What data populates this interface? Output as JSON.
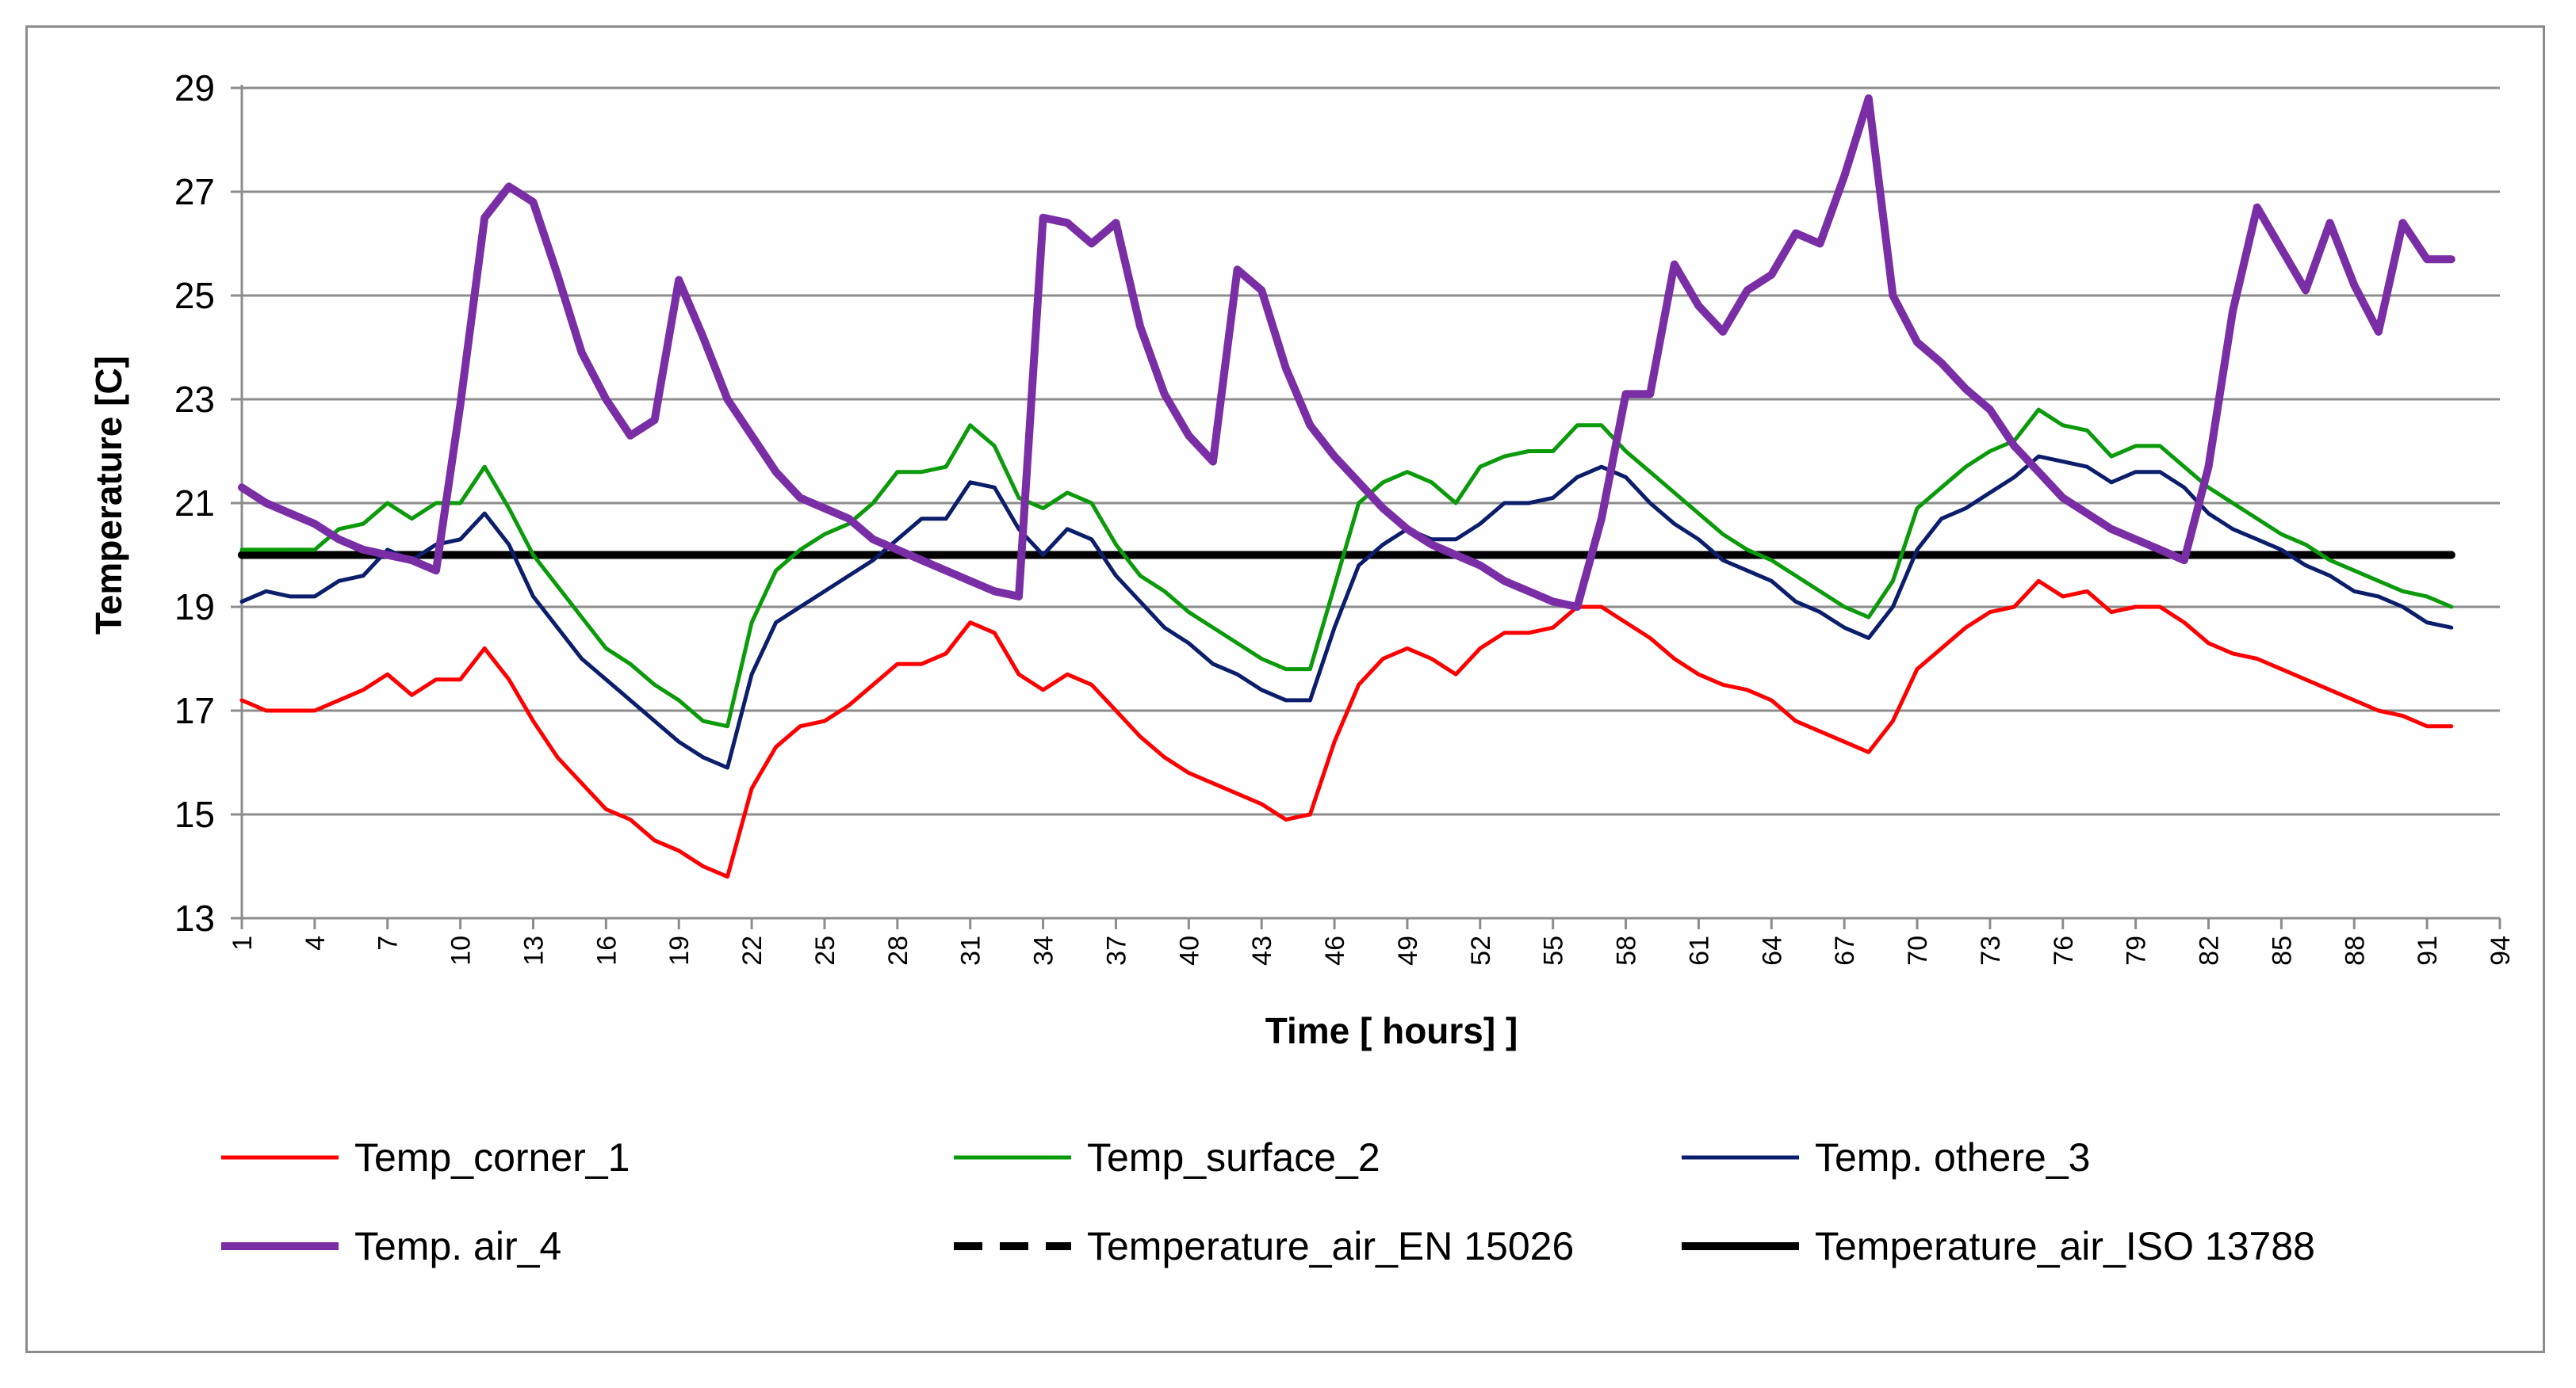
{
  "chart_data": {
    "type": "line",
    "title": "",
    "xlabel": "Time [ hours] ]",
    "ylabel": "Temperature [C]",
    "xlim": [
      1,
      94
    ],
    "ylim": [
      13,
      29
    ],
    "y_ticks": [
      13,
      15,
      17,
      19,
      21,
      23,
      25,
      27,
      29
    ],
    "x_ticks": [
      1,
      4,
      7,
      10,
      13,
      16,
      19,
      22,
      25,
      28,
      31,
      34,
      37,
      40,
      43,
      46,
      49,
      52,
      55,
      58,
      61,
      64,
      67,
      70,
      73,
      76,
      79,
      82,
      85,
      88,
      91,
      94
    ],
    "grid": true,
    "legend_position": "bottom",
    "x": [
      1,
      2,
      3,
      4,
      5,
      6,
      7,
      8,
      9,
      10,
      11,
      12,
      13,
      14,
      15,
      16,
      17,
      18,
      19,
      20,
      21,
      22,
      23,
      24,
      25,
      26,
      27,
      28,
      29,
      30,
      31,
      32,
      33,
      34,
      35,
      36,
      37,
      38,
      39,
      40,
      41,
      42,
      43,
      44,
      45,
      46,
      47,
      48,
      49,
      50,
      51,
      52,
      53,
      54,
      55,
      56,
      57,
      58,
      59,
      60,
      61,
      62,
      63,
      64,
      65,
      66,
      67,
      68,
      69,
      70,
      71,
      72,
      73,
      74,
      75,
      76,
      77,
      78,
      79,
      80,
      81,
      82,
      83,
      84,
      85,
      86,
      87,
      88,
      89,
      90,
      91,
      92
    ],
    "series": [
      {
        "name": "Temp_corner_1",
        "color": "#ff0000",
        "line_style": "solid",
        "values": [
          17.2,
          17.0,
          17.0,
          17.0,
          17.2,
          17.4,
          17.7,
          17.3,
          17.6,
          17.6,
          18.2,
          17.6,
          16.8,
          16.1,
          15.6,
          15.1,
          14.9,
          14.5,
          14.3,
          14.0,
          13.8,
          15.5,
          16.3,
          16.7,
          16.8,
          17.1,
          17.5,
          17.9,
          17.9,
          18.1,
          18.7,
          18.5,
          17.7,
          17.4,
          17.7,
          17.5,
          17.0,
          16.5,
          16.1,
          15.8,
          15.6,
          15.4,
          15.2,
          14.9,
          15.0,
          16.4,
          17.5,
          18.0,
          18.2,
          18.0,
          17.7,
          18.2,
          18.5,
          18.5,
          18.6,
          19.0,
          19.0,
          18.7,
          18.4,
          18.0,
          17.7,
          17.5,
          17.4,
          17.2,
          16.8,
          16.6,
          16.4,
          16.2,
          16.8,
          17.8,
          18.2,
          18.6,
          18.9,
          19.0,
          19.5,
          19.2,
          19.3,
          18.9,
          19.0,
          19.0,
          18.7,
          18.3,
          18.1,
          18.0,
          17.8,
          17.6,
          17.4,
          17.2,
          17.0,
          16.9,
          16.7,
          16.7
        ]
      },
      {
        "name": "Temp_surface_2",
        "color": "#0a9a0a",
        "line_style": "solid",
        "values": [
          20.1,
          20.1,
          20.1,
          20.1,
          20.5,
          20.6,
          21.0,
          20.7,
          21.0,
          21.0,
          21.7,
          20.9,
          20.0,
          19.4,
          18.8,
          18.2,
          17.9,
          17.5,
          17.2,
          16.8,
          16.7,
          18.7,
          19.7,
          20.1,
          20.4,
          20.6,
          21.0,
          21.6,
          21.6,
          21.7,
          22.5,
          22.1,
          21.1,
          20.9,
          21.2,
          21.0,
          20.2,
          19.6,
          19.3,
          18.9,
          18.6,
          18.3,
          18.0,
          17.8,
          17.8,
          19.4,
          21.0,
          21.4,
          21.6,
          21.4,
          21.0,
          21.7,
          21.9,
          22.0,
          22.0,
          22.5,
          22.5,
          22.0,
          21.6,
          21.2,
          20.8,
          20.4,
          20.1,
          19.9,
          19.6,
          19.3,
          19.0,
          18.8,
          19.5,
          20.9,
          21.3,
          21.7,
          22.0,
          22.2,
          22.8,
          22.5,
          22.4,
          21.9,
          22.1,
          22.1,
          21.7,
          21.3,
          21.0,
          20.7,
          20.4,
          20.2,
          19.9,
          19.7,
          19.5,
          19.3,
          19.2,
          19.0
        ]
      },
      {
        "name": "Temp. othere_3",
        "color": "#0b1d6b",
        "line_style": "solid",
        "values": [
          19.1,
          19.3,
          19.2,
          19.2,
          19.5,
          19.6,
          20.1,
          19.9,
          20.2,
          20.3,
          20.8,
          20.2,
          19.2,
          18.6,
          18.0,
          17.6,
          17.2,
          16.8,
          16.4,
          16.1,
          15.9,
          17.7,
          18.7,
          19.0,
          19.3,
          19.6,
          19.9,
          20.3,
          20.7,
          20.7,
          21.4,
          21.3,
          20.5,
          20.0,
          20.5,
          20.3,
          19.6,
          19.1,
          18.6,
          18.3,
          17.9,
          17.7,
          17.4,
          17.2,
          17.2,
          18.6,
          19.8,
          20.2,
          20.5,
          20.3,
          20.3,
          20.6,
          21.0,
          21.0,
          21.1,
          21.5,
          21.7,
          21.5,
          21.0,
          20.6,
          20.3,
          19.9,
          19.7,
          19.5,
          19.1,
          18.9,
          18.6,
          18.4,
          19.0,
          20.1,
          20.7,
          20.9,
          21.2,
          21.5,
          21.9,
          21.8,
          21.7,
          21.4,
          21.6,
          21.6,
          21.3,
          20.8,
          20.5,
          20.3,
          20.1,
          19.8,
          19.6,
          19.3,
          19.2,
          19.0,
          18.7,
          18.6
        ]
      },
      {
        "name": "Temp. air_4",
        "color": "#7a2ea6",
        "line_style": "solid",
        "values": [
          21.3,
          21.0,
          20.8,
          20.6,
          20.3,
          20.1,
          20.0,
          19.9,
          19.7,
          22.9,
          26.5,
          27.1,
          26.8,
          25.4,
          23.9,
          23.0,
          22.3,
          22.6,
          25.3,
          24.2,
          23.0,
          22.3,
          21.6,
          21.1,
          20.9,
          20.7,
          20.3,
          20.1,
          19.9,
          19.7,
          19.5,
          19.3,
          19.2,
          26.5,
          26.4,
          26.0,
          26.4,
          24.4,
          23.1,
          22.3,
          21.8,
          25.5,
          25.1,
          23.6,
          22.5,
          21.9,
          21.4,
          20.9,
          20.5,
          20.2,
          20.0,
          19.8,
          19.5,
          19.3,
          19.1,
          19.0,
          20.7,
          23.1,
          23.1,
          25.6,
          24.8,
          24.3,
          25.1,
          25.4,
          26.2,
          26.0,
          27.3,
          28.8,
          25.0,
          24.1,
          23.7,
          23.2,
          22.8,
          22.1,
          21.6,
          21.1,
          20.8,
          20.5,
          20.3,
          20.1,
          19.9,
          21.7,
          24.7,
          26.7,
          25.9,
          25.1,
          26.4,
          25.2,
          24.3,
          26.4,
          25.7,
          25.7
        ]
      },
      {
        "name": "Temperature_air_EN 15026",
        "color": "#000000",
        "line_style": "dashed",
        "values": [
          20,
          20,
          20,
          20,
          20,
          20,
          20,
          20,
          20,
          20,
          20,
          20,
          20,
          20,
          20,
          20,
          20,
          20,
          20,
          20,
          20,
          20,
          20,
          20,
          20,
          20,
          20,
          20,
          20,
          20,
          20,
          20,
          20,
          20,
          20,
          20,
          20,
          20,
          20,
          20,
          20,
          20,
          20,
          20,
          20,
          20,
          20,
          20,
          20,
          20,
          20,
          20,
          20,
          20,
          20,
          20,
          20,
          20,
          20,
          20,
          20,
          20,
          20,
          20,
          20,
          20,
          20,
          20,
          20,
          20,
          20,
          20,
          20,
          20,
          20,
          20,
          20,
          20,
          20,
          20,
          20,
          20,
          20,
          20,
          20,
          20,
          20,
          20,
          20,
          20,
          20,
          20
        ]
      },
      {
        "name": "Temperature_air_ISO 13788",
        "color": "#000000",
        "line_style": "solid",
        "values": [
          20,
          20,
          20,
          20,
          20,
          20,
          20,
          20,
          20,
          20,
          20,
          20,
          20,
          20,
          20,
          20,
          20,
          20,
          20,
          20,
          20,
          20,
          20,
          20,
          20,
          20,
          20,
          20,
          20,
          20,
          20,
          20,
          20,
          20,
          20,
          20,
          20,
          20,
          20,
          20,
          20,
          20,
          20,
          20,
          20,
          20,
          20,
          20,
          20,
          20,
          20,
          20,
          20,
          20,
          20,
          20,
          20,
          20,
          20,
          20,
          20,
          20,
          20,
          20,
          20,
          20,
          20,
          20,
          20,
          20,
          20,
          20,
          20,
          20,
          20,
          20,
          20,
          20,
          20,
          20,
          20,
          20,
          20,
          20,
          20,
          20,
          20,
          20,
          20,
          20,
          20,
          20
        ]
      }
    ]
  }
}
